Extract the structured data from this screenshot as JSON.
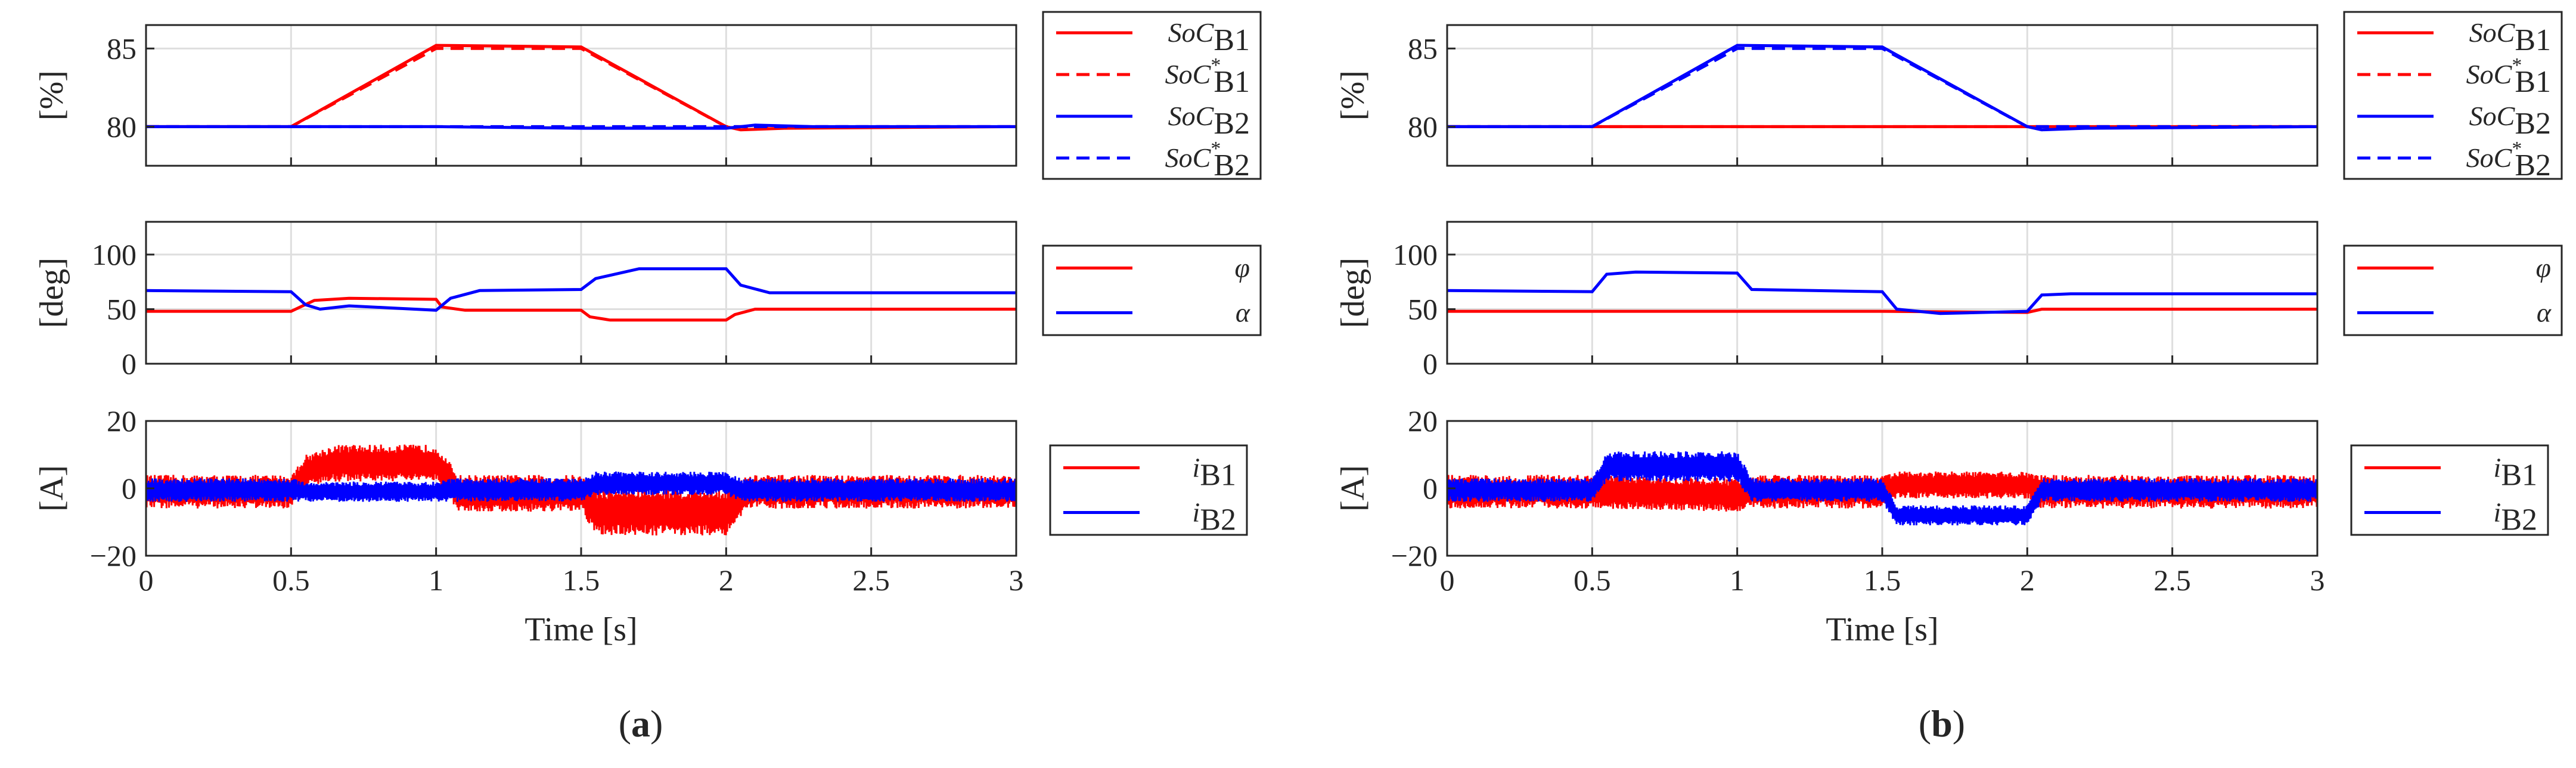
{
  "figure_labels": {
    "a_open": "(",
    "a_letter": "a",
    "a_close": ")",
    "b_open": "(",
    "b_letter": "b",
    "b_close": ")"
  },
  "colors": {
    "red": "#ff0000",
    "blue": "#0000ff",
    "axis": "#262626",
    "grid": "#dedede"
  },
  "chart_data": [
    {
      "panel": "a",
      "row": "soc",
      "type": "line",
      "ylabel": "[%]",
      "xlabel": "",
      "xlim": [
        0,
        3
      ],
      "ylim": [
        77.5,
        86.5
      ],
      "xticks": [
        0,
        0.5,
        1,
        1.5,
        2,
        2.5,
        3
      ],
      "yticks": [
        80,
        85
      ],
      "xtick_labels": [
        "",
        "",
        "",
        "",
        "",
        "",
        ""
      ],
      "ytick_labels": [
        "80",
        "85"
      ],
      "series": [
        {
          "name": "SoC",
          "sub": "B1",
          "star": false,
          "color": "#ff0000",
          "dash": false,
          "x": [
            0,
            0.5,
            1.0,
            1.5,
            2.0,
            2.05,
            2.2,
            3
          ],
          "y": [
            80,
            80,
            85.2,
            85.1,
            80,
            79.8,
            79.9,
            80
          ]
        },
        {
          "name": "SoC",
          "sub": "B1",
          "star": true,
          "color": "#ff0000",
          "dash": true,
          "x": [
            0,
            0.5,
            1.0,
            1.5,
            2.0,
            3
          ],
          "y": [
            80,
            80,
            85,
            85,
            80,
            80
          ]
        },
        {
          "name": "SoC",
          "sub": "B2",
          "star": false,
          "color": "#0000ff",
          "dash": false,
          "x": [
            0,
            0.5,
            1.0,
            1.5,
            2.0,
            2.1,
            2.3,
            3
          ],
          "y": [
            80,
            80,
            80,
            79.9,
            79.9,
            80.1,
            80,
            80
          ]
        },
        {
          "name": "SoC",
          "sub": "B2",
          "star": true,
          "color": "#0000ff",
          "dash": true,
          "x": [
            0,
            3
          ],
          "y": [
            80,
            80
          ]
        }
      ]
    },
    {
      "panel": "a",
      "row": "angle",
      "type": "line",
      "ylabel": "[deg]",
      "xlabel": "",
      "xlim": [
        0,
        3
      ],
      "ylim": [
        0,
        130
      ],
      "xticks": [
        0,
        0.5,
        1,
        1.5,
        2,
        2.5,
        3
      ],
      "yticks": [
        0,
        50,
        100
      ],
      "xtick_labels": [
        "",
        "",
        "",
        "",
        "",
        "",
        ""
      ],
      "ytick_labels": [
        "0",
        "50",
        "100"
      ],
      "series": [
        {
          "name": "φ",
          "sub": "",
          "star": false,
          "color": "#ff0000",
          "dash": false,
          "x": [
            0,
            0.5,
            0.58,
            0.7,
            1.0,
            1.02,
            1.1,
            1.5,
            1.53,
            1.6,
            2.0,
            2.03,
            2.1,
            3
          ],
          "y": [
            48,
            48,
            58,
            60,
            59,
            52,
            49,
            49,
            43,
            40,
            40,
            45,
            50,
            50
          ]
        },
        {
          "name": "α",
          "sub": "",
          "star": false,
          "color": "#0000ff",
          "dash": false,
          "x": [
            0,
            0.5,
            0.55,
            0.6,
            0.7,
            0.85,
            1.0,
            1.05,
            1.15,
            1.5,
            1.55,
            1.7,
            2.0,
            2.05,
            2.15,
            3
          ],
          "y": [
            67,
            66,
            54,
            50,
            53,
            51,
            49,
            60,
            67,
            68,
            78,
            87,
            87,
            72,
            65,
            65
          ]
        }
      ]
    },
    {
      "panel": "a",
      "row": "current",
      "type": "line",
      "ylabel": "[A]",
      "xlabel": "Time [s]",
      "xlim": [
        0,
        3
      ],
      "ylim": [
        -20,
        20
      ],
      "xticks": [
        0,
        0.5,
        1,
        1.5,
        2,
        2.5,
        3
      ],
      "yticks": [
        -20,
        0,
        20
      ],
      "xtick_labels": [
        "0",
        "0.5",
        "1",
        "1.5",
        "2",
        "2.5",
        "3"
      ],
      "ytick_labels": [
        "−20",
        "0",
        "20"
      ],
      "series": [
        {
          "name": "i",
          "sub": "B1",
          "star": false,
          "color": "#ff0000",
          "dash": false,
          "x": [
            0,
            0.5,
            0.55,
            0.65,
            1.0,
            1.08,
            1.5,
            1.55,
            2.0,
            2.08,
            3
          ],
          "upper": [
            4,
            4,
            10,
            13,
            13,
            4,
            4,
            0,
            0,
            4,
            4
          ],
          "lower": [
            -6,
            -6,
            0,
            2,
            2,
            -7,
            -7,
            -14,
            -14,
            -6,
            -6
          ]
        },
        {
          "name": "i",
          "sub": "B2",
          "star": false,
          "color": "#0000ff",
          "dash": false,
          "x": [
            0,
            0.5,
            0.55,
            1.0,
            1.05,
            1.5,
            1.55,
            2.0,
            2.05,
            3
          ],
          "upper": [
            3,
            3,
            2,
            2,
            3,
            3,
            5,
            5,
            3,
            3
          ],
          "lower": [
            -4,
            -4,
            -4,
            -4,
            -4,
            -4,
            -2,
            -2,
            -4,
            -4
          ]
        }
      ]
    },
    {
      "panel": "b",
      "row": "soc",
      "type": "line",
      "ylabel": "[%]",
      "xlabel": "",
      "xlim": [
        0,
        3
      ],
      "ylim": [
        77.5,
        86.5
      ],
      "xticks": [
        0,
        0.5,
        1,
        1.5,
        2,
        2.5,
        3
      ],
      "yticks": [
        80,
        85
      ],
      "xtick_labels": [
        "",
        "",
        "",
        "",
        "",
        "",
        ""
      ],
      "ytick_labels": [
        "80",
        "85"
      ],
      "series": [
        {
          "name": "SoC",
          "sub": "B1",
          "star": false,
          "color": "#ff0000",
          "dash": false,
          "x": [
            0,
            3
          ],
          "y": [
            80,
            80
          ]
        },
        {
          "name": "SoC",
          "sub": "B1",
          "star": true,
          "color": "#ff0000",
          "dash": true,
          "x": [
            0,
            3
          ],
          "y": [
            80,
            80
          ]
        },
        {
          "name": "SoC",
          "sub": "B2",
          "star": false,
          "color": "#0000ff",
          "dash": false,
          "x": [
            0,
            0.5,
            1.0,
            1.5,
            2.0,
            2.05,
            2.2,
            3
          ],
          "y": [
            80,
            80,
            85.2,
            85.1,
            80,
            79.8,
            79.9,
            80
          ]
        },
        {
          "name": "SoC",
          "sub": "B2",
          "star": true,
          "color": "#0000ff",
          "dash": true,
          "x": [
            0,
            0.5,
            1.0,
            1.5,
            2.0,
            3
          ],
          "y": [
            80,
            80,
            85,
            85,
            80,
            80
          ]
        }
      ]
    },
    {
      "panel": "b",
      "row": "angle",
      "type": "line",
      "ylabel": "[deg]",
      "xlabel": "",
      "xlim": [
        0,
        3
      ],
      "ylim": [
        0,
        130
      ],
      "xticks": [
        0,
        0.5,
        1,
        1.5,
        2,
        2.5,
        3
      ],
      "yticks": [
        0,
        50,
        100
      ],
      "xtick_labels": [
        "",
        "",
        "",
        "",
        "",
        "",
        ""
      ],
      "ytick_labels": [
        "0",
        "50",
        "100"
      ],
      "series": [
        {
          "name": "φ",
          "sub": "",
          "star": false,
          "color": "#ff0000",
          "dash": false,
          "x": [
            0,
            0.5,
            1.0,
            1.5,
            2.0,
            2.05,
            3
          ],
          "y": [
            48,
            48,
            48,
            48,
            47,
            50,
            50
          ]
        },
        {
          "name": "α",
          "sub": "",
          "star": false,
          "color": "#0000ff",
          "dash": false,
          "x": [
            0,
            0.5,
            0.55,
            0.65,
            1.0,
            1.05,
            1.5,
            1.55,
            1.7,
            2.0,
            2.05,
            2.15,
            3
          ],
          "y": [
            67,
            66,
            82,
            84,
            83,
            68,
            66,
            50,
            46,
            48,
            63,
            64,
            64
          ]
        }
      ]
    },
    {
      "panel": "b",
      "row": "current",
      "type": "line",
      "ylabel": "[A]",
      "xlabel": "Time [s]",
      "xlim": [
        0,
        3
      ],
      "ylim": [
        -20,
        20
      ],
      "xticks": [
        0,
        0.5,
        1,
        1.5,
        2,
        2.5,
        3
      ],
      "yticks": [
        -20,
        0,
        20
      ],
      "xtick_labels": [
        "0",
        "0.5",
        "1",
        "1.5",
        "2",
        "2.5",
        "3"
      ],
      "ytick_labels": [
        "−20",
        "0",
        "20"
      ],
      "series": [
        {
          "name": "i",
          "sub": "B1",
          "star": false,
          "color": "#ff0000",
          "dash": false,
          "x": [
            0,
            0.5,
            1.0,
            1.05,
            1.5,
            1.55,
            2.0,
            2.05,
            3
          ],
          "upper": [
            4,
            4,
            3,
            4,
            4,
            5,
            5,
            4,
            4
          ],
          "lower": [
            -6,
            -6,
            -7,
            -6,
            -6,
            -3,
            -3,
            -6,
            -6
          ]
        },
        {
          "name": "i",
          "sub": "B2",
          "star": false,
          "color": "#0000ff",
          "dash": false,
          "x": [
            0,
            0.5,
            0.55,
            1.0,
            1.05,
            1.5,
            1.55,
            2.0,
            2.05,
            3
          ],
          "upper": [
            3,
            3,
            11,
            11,
            3,
            3,
            -5,
            -5,
            3,
            3
          ],
          "lower": [
            -4,
            -4,
            2,
            2,
            -4,
            -4,
            -11,
            -11,
            -4,
            -4
          ]
        }
      ]
    }
  ]
}
